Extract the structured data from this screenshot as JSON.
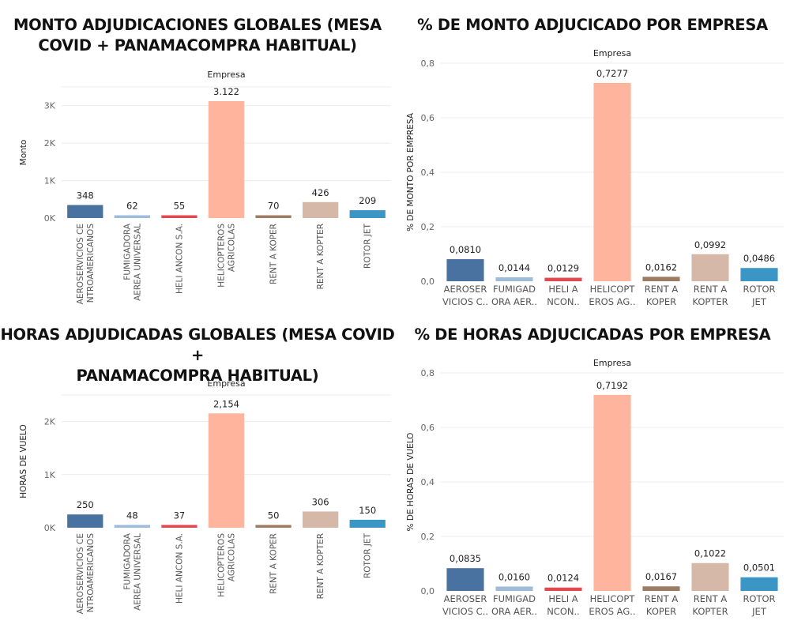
{
  "chart_data": [
    {
      "id": "monto",
      "type": "bar",
      "title": "MONTO ADJUDICACIONES GLOBALES (MESA COVID + PANAMACOMPRA HABITUAL)",
      "title_lines": [
        "MONTO ADJUDICACIONES GLOBALES (MESA",
        "COVID + PANAMACOMPRA HABITUAL)"
      ],
      "column_header": "Empresa",
      "ylabel": "Monto",
      "categories": [
        "AEROSERVICIOS CENTROAMERICANOS",
        "FUMIGADORA AEREA UNIVERSAL",
        "HELI ANCON S.A.",
        "HELICOPTEROS AGRICOLAS",
        "RENT A KOPER",
        "RENT A KOPTER",
        "ROTOR JET"
      ],
      "category_labels": [
        [
          "AEROSERVICIOS CE",
          "NTROAMERICANOS"
        ],
        [
          "FUMIGADORA",
          "AEREA UNIVERSAL"
        ],
        [
          "HELI ANCON S.A."
        ],
        [
          "HELICOPTEROS",
          "AGRICOLAS"
        ],
        [
          "RENT A KOPER"
        ],
        [
          "RENT A KOPTER"
        ],
        [
          "ROTOR JET"
        ]
      ],
      "values": [
        348,
        62,
        55,
        3122,
        70,
        426,
        209
      ],
      "value_labels": [
        "348",
        "62",
        "55",
        "3.122",
        "70",
        "426",
        "209"
      ],
      "yticks": [
        0,
        1000,
        2000,
        3000
      ],
      "ytick_labels": [
        "0K",
        "1K",
        "2K",
        "3K"
      ],
      "ylim": [
        0,
        3500
      ],
      "grid": true,
      "colors": [
        "#4a72a0",
        "#9cbcd9",
        "#e04a4f",
        "#ffb49d",
        "#9c7b62",
        "#d6b8a9",
        "#3b96c6"
      ]
    },
    {
      "id": "pct-monto",
      "type": "bar",
      "title": "% DE MONTO ADJUCICADO POR EMPRESA",
      "title_lines": [
        "% DE MONTO ADJUCICADO POR EMPRESA"
      ],
      "column_header": "Empresa",
      "ylabel": "% DE MONTO POR EMPRESA",
      "categories": [
        "AEROSERVICIOS C..",
        "FUMIGADORA AER..",
        "HELI ANCON..",
        "HELICOPTEROS AG..",
        "RENT A KOPER",
        "RENT A KOPTER",
        "ROTOR JET"
      ],
      "category_labels": [
        [
          "AEROSER",
          "VICIOS C.."
        ],
        [
          "FUMIGAD",
          "ORA AER.."
        ],
        [
          "HELI A",
          "NCON.."
        ],
        [
          "HELICOPT",
          "EROS AG.."
        ],
        [
          "RENT A",
          "KOPER"
        ],
        [
          "RENT A",
          "KOPTER"
        ],
        [
          "ROTOR",
          "JET"
        ]
      ],
      "values": [
        0.081,
        0.0144,
        0.0129,
        0.7277,
        0.0162,
        0.0992,
        0.0486
      ],
      "value_labels": [
        "0,0810",
        "0,0144",
        "0,0129",
        "0,7277",
        "0,0162",
        "0,0992",
        "0,0486"
      ],
      "yticks": [
        0,
        0.2,
        0.4,
        0.6,
        0.8
      ],
      "ytick_labels": [
        "0,0",
        "0,2",
        "0,4",
        "0,6",
        "0,8"
      ],
      "ylim": [
        0,
        0.8
      ],
      "grid": true,
      "colors": [
        "#4a72a0",
        "#9cbcd9",
        "#e04a4f",
        "#ffb49d",
        "#9c7b62",
        "#d6b8a9",
        "#3b96c6"
      ]
    },
    {
      "id": "horas",
      "type": "bar",
      "title": "HORAS ADJUDICADAS GLOBALES (MESA COVID + PANAMACOMPRA HABITUAL)",
      "title_lines": [
        "HORAS ADJUDICADAS GLOBALES (MESA COVID +",
        "PANAMACOMPRA HABITUAL)"
      ],
      "column_header": "Empresa",
      "ylabel": "HORAS DE VUELO",
      "categories": [
        "AEROSERVICIOS CENTROAMERICANOS",
        "FUMIGADORA AEREA UNIVERSAL",
        "HELI ANCON S.A.",
        "HELICOPTEROS AGRICOLAS",
        "RENT A KOPER",
        "RENT A KOPTER",
        "ROTOR JET"
      ],
      "category_labels": [
        [
          "AEROSERVICIOS CE",
          "NTROAMERICANOS"
        ],
        [
          "FUMIGADORA",
          "AEREA UNIVERSAL"
        ],
        [
          "HELI ANCON S.A."
        ],
        [
          "HELICOPTEROS",
          "AGRICOLAS"
        ],
        [
          "RENT A KOPER"
        ],
        [
          "RENT A KOPTER"
        ],
        [
          "ROTOR JET"
        ]
      ],
      "values": [
        250,
        48,
        37,
        2154,
        50,
        306,
        150
      ],
      "value_labels": [
        "250",
        "48",
        "37",
        "2,154",
        "50",
        "306",
        "150"
      ],
      "yticks": [
        0,
        1000,
        2000
      ],
      "ytick_labels": [
        "0K",
        "1K",
        "2K"
      ],
      "ylim": [
        0,
        2500
      ],
      "grid": true,
      "colors": [
        "#4a72a0",
        "#9cbcd9",
        "#e04a4f",
        "#ffb49d",
        "#9c7b62",
        "#d6b8a9",
        "#3b96c6"
      ]
    },
    {
      "id": "pct-horas",
      "type": "bar",
      "title": "% DE HORAS ADJUCICADAS POR EMPRESA",
      "title_lines": [
        "% DE HORAS ADJUCICADAS POR EMPRESA"
      ],
      "column_header": "Empresa",
      "ylabel": "% DE HORAS DE VUELO",
      "categories": [
        "AEROSERVICIOS C..",
        "FUMIGADORA AER..",
        "HELI ANCON..",
        "HELICOPTEROS AG..",
        "RENT A KOPER",
        "RENT A KOPTER",
        "ROTOR JET"
      ],
      "category_labels": [
        [
          "AEROSER",
          "VICIOS C.."
        ],
        [
          "FUMIGAD",
          "ORA AER.."
        ],
        [
          "HELI A",
          "NCON.."
        ],
        [
          "HELICOPT",
          "EROS AG.."
        ],
        [
          "RENT A",
          "KOPER"
        ],
        [
          "RENT A",
          "KOPTER"
        ],
        [
          "ROTOR",
          "JET"
        ]
      ],
      "values": [
        0.0835,
        0.016,
        0.0124,
        0.7192,
        0.0167,
        0.1022,
        0.0501
      ],
      "value_labels": [
        "0,0835",
        "0,0160",
        "0,0124",
        "0,7192",
        "0,0167",
        "0,1022",
        "0,0501"
      ],
      "yticks": [
        0,
        0.2,
        0.4,
        0.6,
        0.8
      ],
      "ytick_labels": [
        "0,0",
        "0,2",
        "0,4",
        "0,6",
        "0,8"
      ],
      "ylim": [
        0,
        0.8
      ],
      "grid": true,
      "colors": [
        "#4a72a0",
        "#9cbcd9",
        "#e04a4f",
        "#ffb49d",
        "#9c7b62",
        "#d6b8a9",
        "#3b96c6"
      ]
    }
  ]
}
